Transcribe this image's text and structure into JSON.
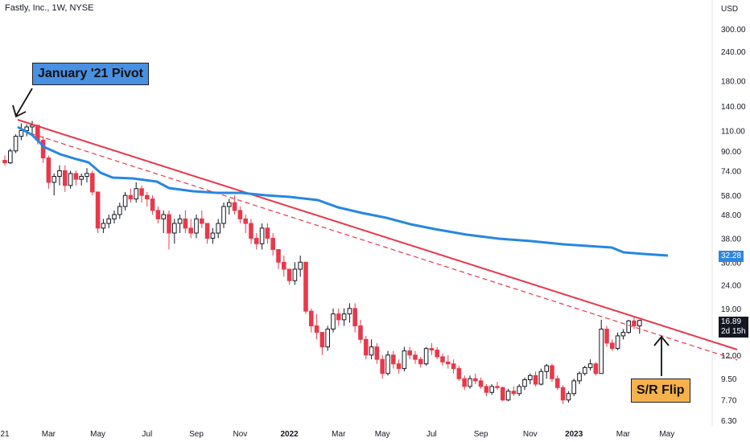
{
  "header": {
    "title": "Fastly, Inc., 1W, NYSE"
  },
  "annotations": {
    "pivot": "January '21 Pivot",
    "flip": "S/R Flip"
  },
  "price_tags": {
    "ma_value": "32.28",
    "last_price": "16.89",
    "countdown": "2d 15h"
  },
  "colors": {
    "up": "#131722",
    "down": "#e8394b",
    "ma": "#2787e0",
    "trend": "#e8394b"
  },
  "chart_data": {
    "type": "candlestick",
    "title": "Fastly, Inc., 1W, NYSE",
    "y_scale": "log",
    "ylim": [
      6.0,
      350
    ],
    "y_axis_unit": "USD",
    "y_ticks": [
      300,
      240,
      180,
      140,
      110,
      90,
      74,
      58,
      48,
      38,
      30,
      24,
      19,
      12,
      9.5,
      7.7,
      6.3
    ],
    "y_tick_labels": [
      "300.00",
      "240.00",
      "180.00",
      "140.00",
      "110.00",
      "90.00",
      "74.00",
      "58.00",
      "48.00",
      "38.00",
      "30.00",
      "24.00",
      "19.00",
      "12.00",
      "9.50",
      "7.70",
      "6.30"
    ],
    "x_labels": [
      "21",
      "Mar",
      "May",
      "Jul",
      "Sep",
      "Nov",
      "2022",
      "Mar",
      "May",
      "Jul",
      "Sep",
      "Nov",
      "2023",
      "Mar",
      "May"
    ],
    "x_label_weeks": [
      0,
      8,
      17,
      26,
      35,
      43,
      52,
      61,
      69,
      78,
      87,
      96,
      104,
      113,
      121
    ],
    "ma_current": 32.28,
    "last_price": 16.89,
    "candles": [
      [
        82,
        86,
        78,
        80
      ],
      [
        80,
        92,
        79,
        90
      ],
      [
        90,
        106,
        88,
        104
      ],
      [
        104,
        118,
        100,
        110
      ],
      [
        110,
        117,
        104,
        114
      ],
      [
        114,
        121,
        106,
        116
      ],
      [
        116,
        116,
        96,
        100
      ],
      [
        100,
        104,
        80,
        84
      ],
      [
        84,
        86,
        62,
        66
      ],
      [
        66,
        72,
        58,
        70
      ],
      [
        70,
        78,
        64,
        74
      ],
      [
        74,
        78,
        60,
        64
      ],
      [
        64,
        74,
        62,
        72
      ],
      [
        72,
        74,
        64,
        68
      ],
      [
        68,
        72,
        64,
        70
      ],
      [
        70,
        76,
        66,
        72
      ],
      [
        72,
        74,
        58,
        60
      ],
      [
        60,
        60,
        40,
        42
      ],
      [
        42,
        46,
        40,
        44
      ],
      [
        44,
        48,
        42,
        46
      ],
      [
        46,
        50,
        44,
        48
      ],
      [
        48,
        54,
        46,
        52
      ],
      [
        52,
        60,
        50,
        58
      ],
      [
        58,
        62,
        54,
        56
      ],
      [
        56,
        66,
        54,
        62
      ],
      [
        62,
        64,
        54,
        58
      ],
      [
        58,
        60,
        52,
        56
      ],
      [
        56,
        58,
        48,
        50
      ],
      [
        50,
        52,
        44,
        46
      ],
      [
        46,
        50,
        40,
        48
      ],
      [
        48,
        50,
        34,
        40
      ],
      [
        40,
        46,
        36,
        44
      ],
      [
        44,
        48,
        40,
        46
      ],
      [
        46,
        50,
        40,
        42
      ],
      [
        42,
        46,
        38,
        40
      ],
      [
        40,
        48,
        38,
        46
      ],
      [
        46,
        50,
        42,
        44
      ],
      [
        44,
        44,
        36,
        38
      ],
      [
        38,
        42,
        36,
        40
      ],
      [
        40,
        46,
        38,
        44
      ],
      [
        44,
        54,
        42,
        52
      ],
      [
        52,
        56,
        48,
        54
      ],
      [
        54,
        58,
        48,
        50
      ],
      [
        50,
        52,
        44,
        46
      ],
      [
        46,
        48,
        40,
        44
      ],
      [
        44,
        46,
        36,
        38
      ],
      [
        38,
        40,
        34,
        36
      ],
      [
        36,
        44,
        34,
        42
      ],
      [
        42,
        44,
        36,
        38
      ],
      [
        38,
        40,
        32,
        34
      ],
      [
        34,
        34,
        28,
        30
      ],
      [
        30,
        32,
        26,
        28
      ],
      [
        28,
        28,
        24,
        25
      ],
      [
        25,
        30,
        24,
        28
      ],
      [
        28,
        32,
        26,
        30
      ],
      [
        30,
        30,
        18,
        18.5
      ],
      [
        18.5,
        19,
        15,
        16
      ],
      [
        16,
        18,
        14,
        15
      ],
      [
        15,
        15,
        12,
        13
      ],
      [
        13,
        16,
        12.5,
        15.5
      ],
      [
        15.5,
        19,
        15,
        18
      ],
      [
        18,
        19,
        16,
        17
      ],
      [
        17,
        19,
        16,
        18
      ],
      [
        18,
        20,
        16.5,
        19
      ],
      [
        19,
        20,
        15,
        16
      ],
      [
        16,
        17,
        13.5,
        14
      ],
      [
        14,
        14.5,
        11.5,
        12
      ],
      [
        12,
        14,
        11.5,
        13
      ],
      [
        13,
        13.5,
        11,
        11.5
      ],
      [
        11.5,
        12,
        9.5,
        10
      ],
      [
        10,
        12.5,
        9.8,
        12
      ],
      [
        12,
        12.5,
        10.5,
        11
      ],
      [
        11,
        11.5,
        10,
        10.5
      ],
      [
        10.5,
        13,
        10.2,
        12.5
      ],
      [
        12.5,
        13,
        11.5,
        12
      ],
      [
        12,
        12.5,
        11,
        11.5
      ],
      [
        11.5,
        11.8,
        10.6,
        11
      ],
      [
        11,
        13,
        10.8,
        12.8
      ],
      [
        12.8,
        13.5,
        12,
        12.6
      ],
      [
        12.6,
        13,
        11.5,
        11.8
      ],
      [
        11.8,
        12.2,
        10.8,
        11.2
      ],
      [
        11.2,
        12,
        10.5,
        11
      ],
      [
        11,
        11.5,
        10,
        10.5
      ],
      [
        10.5,
        10.8,
        9.3,
        9.5
      ],
      [
        9.5,
        9.8,
        8.5,
        8.8
      ],
      [
        8.8,
        9.8,
        8.6,
        9.5
      ],
      [
        9.5,
        10,
        9,
        9.3
      ],
      [
        9.3,
        9.6,
        8.6,
        8.8
      ],
      [
        8.8,
        9,
        8,
        8.3
      ],
      [
        8.3,
        9,
        8.1,
        8.8
      ],
      [
        8.8,
        9.2,
        8.5,
        8.7
      ],
      [
        8.7,
        8.8,
        7.6,
        7.7
      ],
      [
        7.7,
        8.6,
        7.6,
        8.4
      ],
      [
        8.4,
        8.8,
        8,
        8.2
      ],
      [
        8.2,
        9,
        8,
        8.8
      ],
      [
        8.8,
        9.6,
        8.5,
        9.4
      ],
      [
        9.4,
        10,
        9,
        9.8
      ],
      [
        9.8,
        10.2,
        8.8,
        9
      ],
      [
        9,
        10.5,
        8.9,
        10.2
      ],
      [
        10.2,
        11,
        9.5,
        10.8
      ],
      [
        10.8,
        11,
        9.2,
        9.5
      ],
      [
        9.5,
        9.8,
        8.5,
        8.7
      ],
      [
        8.7,
        8.9,
        7.4,
        7.7
      ],
      [
        7.7,
        8.4,
        7.5,
        8.2
      ],
      [
        8.2,
        9.5,
        8,
        9.3
      ],
      [
        9.3,
        10.2,
        9,
        10
      ],
      [
        10,
        10.8,
        9.8,
        10.6
      ],
      [
        10.6,
        11.5,
        10.3,
        11
      ],
      [
        11,
        11.2,
        9.8,
        10
      ],
      [
        10,
        17,
        10,
        15.5
      ],
      [
        15.5,
        16,
        13,
        13.5
      ],
      [
        13.5,
        14,
        12.5,
        12.8
      ],
      [
        12.8,
        15,
        12.6,
        14.5
      ],
      [
        14.5,
        15.5,
        14,
        15
      ],
      [
        15,
        17,
        14.8,
        16.8
      ],
      [
        16.8,
        17.5,
        15.5,
        16
      ],
      [
        16,
        17,
        14.8,
        16.89
      ]
    ]
  }
}
